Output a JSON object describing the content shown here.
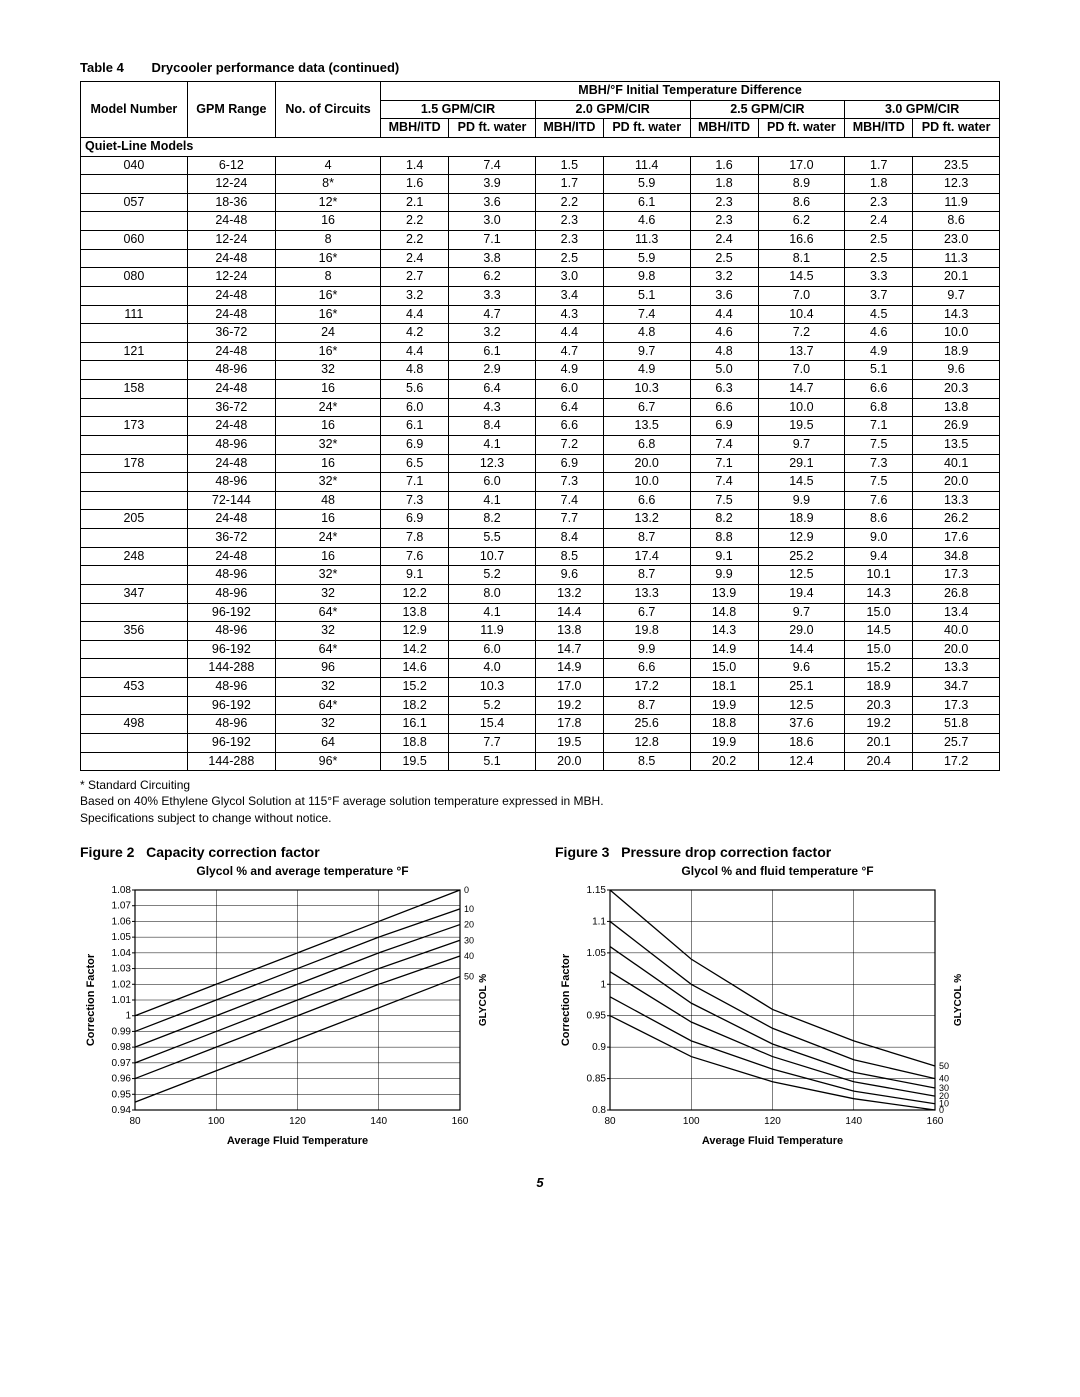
{
  "table": {
    "number": "Table 4",
    "caption": "Drycooler performance data (continued)",
    "top_header": "MBH/°F Initial Temperature Difference",
    "gpm_headers": [
      "1.5 GPM/CIR",
      "2.0 GPM/CIR",
      "2.5 GPM/CIR",
      "3.0 GPM/CIR"
    ],
    "col_labels": {
      "model": "Model Number",
      "gpm": "GPM Range",
      "circuits": "No. of Circuits",
      "mbh": "MBH/ITD",
      "pd": "PD ft. water"
    },
    "section_label": "Quiet-Line Models",
    "rows": [
      {
        "model": "040",
        "gpm": "6-12",
        "cir": "4",
        "v": [
          "1.4",
          "7.4",
          "1.5",
          "11.4",
          "1.6",
          "17.0",
          "1.7",
          "23.5"
        ]
      },
      {
        "model": "",
        "gpm": "12-24",
        "cir": "8*",
        "v": [
          "1.6",
          "3.9",
          "1.7",
          "5.9",
          "1.8",
          "8.9",
          "1.8",
          "12.3"
        ]
      },
      {
        "model": "057",
        "gpm": "18-36",
        "cir": "12*",
        "v": [
          "2.1",
          "3.6",
          "2.2",
          "6.1",
          "2.3",
          "8.6",
          "2.3",
          "11.9"
        ]
      },
      {
        "model": "",
        "gpm": "24-48",
        "cir": "16",
        "v": [
          "2.2",
          "3.0",
          "2.3",
          "4.6",
          "2.3",
          "6.2",
          "2.4",
          "8.6"
        ]
      },
      {
        "model": "060",
        "gpm": "12-24",
        "cir": "8",
        "v": [
          "2.2",
          "7.1",
          "2.3",
          "11.3",
          "2.4",
          "16.6",
          "2.5",
          "23.0"
        ]
      },
      {
        "model": "",
        "gpm": "24-48",
        "cir": "16*",
        "v": [
          "2.4",
          "3.8",
          "2.5",
          "5.9",
          "2.5",
          "8.1",
          "2.5",
          "11.3"
        ]
      },
      {
        "model": "080",
        "gpm": "12-24",
        "cir": "8",
        "v": [
          "2.7",
          "6.2",
          "3.0",
          "9.8",
          "3.2",
          "14.5",
          "3.3",
          "20.1"
        ]
      },
      {
        "model": "",
        "gpm": "24-48",
        "cir": "16*",
        "v": [
          "3.2",
          "3.3",
          "3.4",
          "5.1",
          "3.6",
          "7.0",
          "3.7",
          "9.7"
        ]
      },
      {
        "model": "111",
        "gpm": "24-48",
        "cir": "16*",
        "v": [
          "4.4",
          "4.7",
          "4.3",
          "7.4",
          "4.4",
          "10.4",
          "4.5",
          "14.3"
        ]
      },
      {
        "model": "",
        "gpm": "36-72",
        "cir": "24",
        "v": [
          "4.2",
          "3.2",
          "4.4",
          "4.8",
          "4.6",
          "7.2",
          "4.6",
          "10.0"
        ]
      },
      {
        "model": "121",
        "gpm": "24-48",
        "cir": "16*",
        "v": [
          "4.4",
          "6.1",
          "4.7",
          "9.7",
          "4.8",
          "13.7",
          "4.9",
          "18.9"
        ]
      },
      {
        "model": "",
        "gpm": "48-96",
        "cir": "32",
        "v": [
          "4.8",
          "2.9",
          "4.9",
          "4.9",
          "5.0",
          "7.0",
          "5.1",
          "9.6"
        ]
      },
      {
        "model": "158",
        "gpm": "24-48",
        "cir": "16",
        "v": [
          "5.6",
          "6.4",
          "6.0",
          "10.3",
          "6.3",
          "14.7",
          "6.6",
          "20.3"
        ]
      },
      {
        "model": "",
        "gpm": "36-72",
        "cir": "24*",
        "v": [
          "6.0",
          "4.3",
          "6.4",
          "6.7",
          "6.6",
          "10.0",
          "6.8",
          "13.8"
        ]
      },
      {
        "model": "173",
        "gpm": "24-48",
        "cir": "16",
        "v": [
          "6.1",
          "8.4",
          "6.6",
          "13.5",
          "6.9",
          "19.5",
          "7.1",
          "26.9"
        ]
      },
      {
        "model": "",
        "gpm": "48-96",
        "cir": "32*",
        "v": [
          "6.9",
          "4.1",
          "7.2",
          "6.8",
          "7.4",
          "9.7",
          "7.5",
          "13.5"
        ]
      },
      {
        "model": "178",
        "gpm": "24-48",
        "cir": "16",
        "v": [
          "6.5",
          "12.3",
          "6.9",
          "20.0",
          "7.1",
          "29.1",
          "7.3",
          "40.1"
        ]
      },
      {
        "model": "",
        "gpm": "48-96",
        "cir": "32*",
        "v": [
          "7.1",
          "6.0",
          "7.3",
          "10.0",
          "7.4",
          "14.5",
          "7.5",
          "20.0"
        ]
      },
      {
        "model": "",
        "gpm": "72-144",
        "cir": "48",
        "v": [
          "7.3",
          "4.1",
          "7.4",
          "6.6",
          "7.5",
          "9.9",
          "7.6",
          "13.3"
        ]
      },
      {
        "model": "205",
        "gpm": "24-48",
        "cir": "16",
        "v": [
          "6.9",
          "8.2",
          "7.7",
          "13.2",
          "8.2",
          "18.9",
          "8.6",
          "26.2"
        ]
      },
      {
        "model": "",
        "gpm": "36-72",
        "cir": "24*",
        "v": [
          "7.8",
          "5.5",
          "8.4",
          "8.7",
          "8.8",
          "12.9",
          "9.0",
          "17.6"
        ]
      },
      {
        "model": "248",
        "gpm": "24-48",
        "cir": "16",
        "v": [
          "7.6",
          "10.7",
          "8.5",
          "17.4",
          "9.1",
          "25.2",
          "9.4",
          "34.8"
        ]
      },
      {
        "model": "",
        "gpm": "48-96",
        "cir": "32*",
        "v": [
          "9.1",
          "5.2",
          "9.6",
          "8.7",
          "9.9",
          "12.5",
          "10.1",
          "17.3"
        ]
      },
      {
        "model": "347",
        "gpm": "48-96",
        "cir": "32",
        "v": [
          "12.2",
          "8.0",
          "13.2",
          "13.3",
          "13.9",
          "19.4",
          "14.3",
          "26.8"
        ]
      },
      {
        "model": "",
        "gpm": "96-192",
        "cir": "64*",
        "v": [
          "13.8",
          "4.1",
          "14.4",
          "6.7",
          "14.8",
          "9.7",
          "15.0",
          "13.4"
        ]
      },
      {
        "model": "356",
        "gpm": "48-96",
        "cir": "32",
        "v": [
          "12.9",
          "11.9",
          "13.8",
          "19.8",
          "14.3",
          "29.0",
          "14.5",
          "40.0"
        ]
      },
      {
        "model": "",
        "gpm": "96-192",
        "cir": "64*",
        "v": [
          "14.2",
          "6.0",
          "14.7",
          "9.9",
          "14.9",
          "14.4",
          "15.0",
          "20.0"
        ]
      },
      {
        "model": "",
        "gpm": "144-288",
        "cir": "96",
        "v": [
          "14.6",
          "4.0",
          "14.9",
          "6.6",
          "15.0",
          "9.6",
          "15.2",
          "13.3"
        ]
      },
      {
        "model": "453",
        "gpm": "48-96",
        "cir": "32",
        "v": [
          "15.2",
          "10.3",
          "17.0",
          "17.2",
          "18.1",
          "25.1",
          "18.9",
          "34.7"
        ]
      },
      {
        "model": "",
        "gpm": "96-192",
        "cir": "64*",
        "v": [
          "18.2",
          "5.2",
          "19.2",
          "8.7",
          "19.9",
          "12.5",
          "20.3",
          "17.3"
        ]
      },
      {
        "model": "498",
        "gpm": "48-96",
        "cir": "32",
        "v": [
          "16.1",
          "15.4",
          "17.8",
          "25.6",
          "18.8",
          "37.6",
          "19.2",
          "51.8"
        ]
      },
      {
        "model": "",
        "gpm": "96-192",
        "cir": "64",
        "v": [
          "18.8",
          "7.7",
          "19.5",
          "12.8",
          "19.9",
          "18.6",
          "20.1",
          "25.7"
        ]
      },
      {
        "model": "",
        "gpm": "144-288",
        "cir": "96*",
        "v": [
          "19.5",
          "5.1",
          "20.0",
          "8.5",
          "20.2",
          "12.4",
          "20.4",
          "17.2"
        ]
      }
    ],
    "footnotes": [
      "* Standard Circuiting",
      "Based on 40% Ethylene Glycol Solution at 115°F average solution temperature expressed in MBH.",
      "Specifications subject to change without notice."
    ]
  },
  "figures": {
    "fig2": {
      "label": "Figure 2",
      "title": "Capacity correction factor",
      "subtitle": "Glycol % and average temperature °F",
      "xlabel": "Average Fluid Temperature",
      "ylabel": "Correction Factor",
      "right_label": "GLYCOL %",
      "xlim": [
        80,
        160
      ],
      "xticks": [
        80,
        100,
        120,
        140,
        160
      ],
      "ylim": [
        0.94,
        1.08
      ],
      "yticks": [
        0.94,
        0.95,
        0.96,
        0.97,
        0.98,
        0.99,
        1.0,
        1.01,
        1.02,
        1.03,
        1.04,
        1.05,
        1.06,
        1.07,
        1.08
      ],
      "series": [
        {
          "label": "0",
          "pts": [
            [
              80,
              1.0
            ],
            [
              100,
              1.02
            ],
            [
              120,
              1.04
            ],
            [
              140,
              1.06
            ],
            [
              160,
              1.08
            ]
          ]
        },
        {
          "label": "10",
          "pts": [
            [
              80,
              0.99
            ],
            [
              100,
              1.01
            ],
            [
              120,
              1.03
            ],
            [
              140,
              1.05
            ],
            [
              160,
              1.068
            ]
          ]
        },
        {
          "label": "20",
          "pts": [
            [
              80,
              0.98
            ],
            [
              100,
              1.0
            ],
            [
              120,
              1.02
            ],
            [
              140,
              1.04
            ],
            [
              160,
              1.058
            ]
          ]
        },
        {
          "label": "30",
          "pts": [
            [
              80,
              0.97
            ],
            [
              100,
              0.99
            ],
            [
              120,
              1.01
            ],
            [
              140,
              1.03
            ],
            [
              160,
              1.048
            ]
          ]
        },
        {
          "label": "40",
          "pts": [
            [
              80,
              0.96
            ],
            [
              100,
              0.98
            ],
            [
              120,
              1.0
            ],
            [
              140,
              1.02
            ],
            [
              160,
              1.038
            ]
          ]
        },
        {
          "label": "50",
          "pts": [
            [
              80,
              0.945
            ],
            [
              100,
              0.965
            ],
            [
              120,
              0.985
            ],
            [
              140,
              1.005
            ],
            [
              160,
              1.025
            ]
          ]
        }
      ],
      "colors": {
        "axis": "#000000",
        "grid": "#000000",
        "line": "#000000",
        "bg": "#ffffff"
      },
      "fontsize": 10
    },
    "fig3": {
      "label": "Figure 3",
      "title": "Pressure drop correction factor",
      "subtitle": "Glycol % and fluid temperature °F",
      "xlabel": "Average Fluid Temperature",
      "ylabel": "Correction Factor",
      "right_label": "GLYCOL %",
      "xlim": [
        80,
        160
      ],
      "xticks": [
        80,
        100,
        120,
        140,
        160
      ],
      "ylim": [
        0.8,
        1.15
      ],
      "yticks": [
        0.8,
        0.85,
        0.9,
        0.95,
        1.0,
        1.05,
        1.1,
        1.15
      ],
      "series": [
        {
          "label": "50",
          "pts": [
            [
              80,
              1.15
            ],
            [
              100,
              1.04
            ],
            [
              120,
              0.96
            ],
            [
              140,
              0.91
            ],
            [
              160,
              0.87
            ]
          ]
        },
        {
          "label": "40",
          "pts": [
            [
              80,
              1.1
            ],
            [
              100,
              1.0
            ],
            [
              120,
              0.93
            ],
            [
              140,
              0.88
            ],
            [
              160,
              0.85
            ]
          ]
        },
        {
          "label": "30",
          "pts": [
            [
              80,
              1.06
            ],
            [
              100,
              0.97
            ],
            [
              120,
              0.905
            ],
            [
              140,
              0.86
            ],
            [
              160,
              0.835
            ]
          ]
        },
        {
          "label": "20",
          "pts": [
            [
              80,
              1.02
            ],
            [
              100,
              0.94
            ],
            [
              120,
              0.885
            ],
            [
              140,
              0.845
            ],
            [
              160,
              0.822
            ]
          ]
        },
        {
          "label": "10",
          "pts": [
            [
              80,
              0.98
            ],
            [
              100,
              0.91
            ],
            [
              120,
              0.865
            ],
            [
              140,
              0.83
            ],
            [
              160,
              0.81
            ]
          ]
        },
        {
          "label": "0",
          "pts": [
            [
              80,
              0.95
            ],
            [
              100,
              0.885
            ],
            [
              120,
              0.845
            ],
            [
              140,
              0.818
            ],
            [
              160,
              0.8
            ]
          ]
        }
      ],
      "colors": {
        "axis": "#000000",
        "grid": "#000000",
        "line": "#000000",
        "bg": "#ffffff"
      },
      "fontsize": 10
    }
  },
  "page_number": "5"
}
